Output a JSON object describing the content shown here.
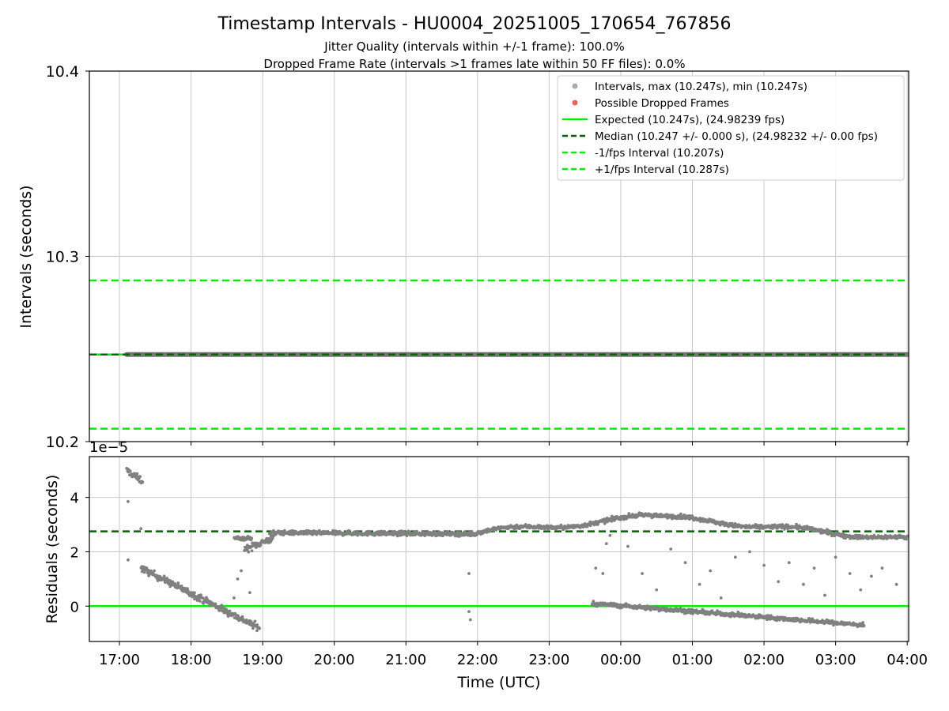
{
  "title": "Timestamp Intervals - HU0004_20251005_170654_767856",
  "subtitle_1": "Jitter Quality (intervals within +/-1 frame): 100.0%",
  "subtitle_2": "Dropped Frame Rate (intervals >1 frames late within 50 FF files): 0.0%",
  "colors": {
    "points": "#808080",
    "dropped": "#f0605a",
    "expected": "#00ee00",
    "median": "#006400",
    "band": "#00ee00",
    "grid": "#c8c8c8"
  },
  "chart_data": [
    {
      "type": "scatter",
      "name": "intervals",
      "ylabel": "Intervals (seconds)",
      "ylim": [
        10.2,
        10.4
      ],
      "yticks": [
        10.2,
        10.3,
        10.4
      ],
      "ytick_labels": [
        "10.2",
        "10.3",
        "10.4"
      ],
      "x_unit": "hours since 17:00 UTC",
      "xlim": [
        -0.42,
        11.02
      ],
      "series": [
        {
          "name": "Intervals, max (10.247s), min (10.247s)",
          "x_start": 0.1,
          "x_end": 11.02,
          "y": 10.247
        }
      ],
      "lines": {
        "expected": 10.247,
        "median": 10.247,
        "minus_1_fps": 10.207,
        "plus_1_fps": 10.287
      },
      "legend": {
        "position": "top-right",
        "entries": [
          {
            "label": "Intervals, max (10.247s), min (10.247s)",
            "kind": "marker",
            "color": "#aaaaaa"
          },
          {
            "label": "Possible Dropped Frames",
            "kind": "marker",
            "color": "#f0605a"
          },
          {
            "label": "Expected (10.247s), (24.98239 fps)",
            "kind": "solid",
            "color": "#00ee00"
          },
          {
            "label": "Median (10.247 +/- 0.000 s), (24.98232 +/- 0.00 fps)",
            "kind": "dashed",
            "color": "#006400"
          },
          {
            "label": "-1/fps Interval (10.207s)",
            "kind": "dashed",
            "color": "#00ee00"
          },
          {
            "label": "+1/fps Interval (10.287s)",
            "kind": "dashed",
            "color": "#00ee00"
          }
        ]
      }
    },
    {
      "type": "scatter",
      "name": "residuals",
      "ylabel": "Residuals (seconds)",
      "xlabel": "Time (UTC)",
      "offset_label": "1e−5",
      "units": "1e-5 s",
      "ylim": [
        -1.3,
        5.5
      ],
      "yticks": [
        0,
        2,
        4
      ],
      "ytick_labels": [
        "0",
        "2",
        "4"
      ],
      "xlim": [
        -0.42,
        11.02
      ],
      "xticks": [
        0,
        1,
        2,
        3,
        4,
        5,
        6,
        7,
        8,
        9,
        10,
        11
      ],
      "xtick_labels": [
        "17:00",
        "18:00",
        "19:00",
        "20:00",
        "21:00",
        "22:00",
        "23:00",
        "00:00",
        "01:00",
        "02:00",
        "03:00",
        "04:00"
      ],
      "lines": {
        "zero": 0,
        "median": 2.75
      },
      "clusters": [
        {
          "name": "initial-high",
          "x_start": 0.1,
          "x_end": 0.32,
          "y_start": 5.0,
          "y_end": 4.6,
          "spread": 0.25
        },
        {
          "name": "decline",
          "x_start": 0.3,
          "x_end": 1.95,
          "y_start": 1.4,
          "y_end": -0.8,
          "spread": 0.25
        },
        {
          "name": "recovery",
          "x_start": 1.75,
          "x_end": 2.15,
          "y_start": 2.1,
          "y_end": 2.5,
          "spread": 0.25
        },
        {
          "name": "early-plateau",
          "x_start": 1.6,
          "x_end": 1.85,
          "y_start": 2.5,
          "y_end": 2.5,
          "spread": 0.15
        },
        {
          "name": "plateau",
          "x_start": 2.1,
          "x_end": 5.0,
          "y_start": 2.7,
          "y_end": 2.65,
          "spread": 0.15
        },
        {
          "name": "rise",
          "x_start": 5.0,
          "x_end": 7.5,
          "y_start": 2.7,
          "y_end": 3.3,
          "spread": 0.15
        },
        {
          "name": "upper-branch",
          "x_start": 7.5,
          "x_end": 11.0,
          "y_start": 3.3,
          "y_end": 2.45,
          "spread": 0.15
        },
        {
          "name": "lower-branch",
          "x_start": 6.6,
          "x_end": 10.4,
          "y_start": 0.1,
          "y_end": -0.7,
          "spread": 0.15
        }
      ],
      "outliers": [
        {
          "x": 0.12,
          "y": 1.7
        },
        {
          "x": 0.12,
          "y": 3.85
        },
        {
          "x": 0.3,
          "y": 2.85
        },
        {
          "x": 1.6,
          "y": 0.3
        },
        {
          "x": 1.65,
          "y": 1.0
        },
        {
          "x": 1.7,
          "y": 1.3
        },
        {
          "x": 1.82,
          "y": 0.5
        },
        {
          "x": 4.88,
          "y": 1.2
        },
        {
          "x": 4.88,
          "y": -0.2
        },
        {
          "x": 4.9,
          "y": -0.5
        },
        {
          "x": 6.65,
          "y": 1.4
        },
        {
          "x": 6.75,
          "y": 1.2
        },
        {
          "x": 6.8,
          "y": 2.3
        },
        {
          "x": 6.85,
          "y": 2.6
        },
        {
          "x": 7.1,
          "y": 2.2
        },
        {
          "x": 7.3,
          "y": 1.2
        },
        {
          "x": 7.5,
          "y": 0.6
        },
        {
          "x": 7.7,
          "y": 2.1
        },
        {
          "x": 7.9,
          "y": 1.6
        },
        {
          "x": 8.1,
          "y": 0.8
        },
        {
          "x": 8.25,
          "y": 1.3
        },
        {
          "x": 8.4,
          "y": 0.3
        },
        {
          "x": 8.6,
          "y": 1.8
        },
        {
          "x": 8.8,
          "y": 2.0
        },
        {
          "x": 9.0,
          "y": 1.5
        },
        {
          "x": 9.2,
          "y": 0.9
        },
        {
          "x": 9.35,
          "y": 1.6
        },
        {
          "x": 9.55,
          "y": 0.8
        },
        {
          "x": 9.7,
          "y": 1.4
        },
        {
          "x": 9.85,
          "y": 0.4
        },
        {
          "x": 10.0,
          "y": 1.8
        },
        {
          "x": 10.2,
          "y": 1.2
        },
        {
          "x": 10.35,
          "y": 0.6
        },
        {
          "x": 10.5,
          "y": 1.1
        },
        {
          "x": 10.65,
          "y": 1.4
        },
        {
          "x": 10.85,
          "y": 0.8
        }
      ]
    }
  ]
}
